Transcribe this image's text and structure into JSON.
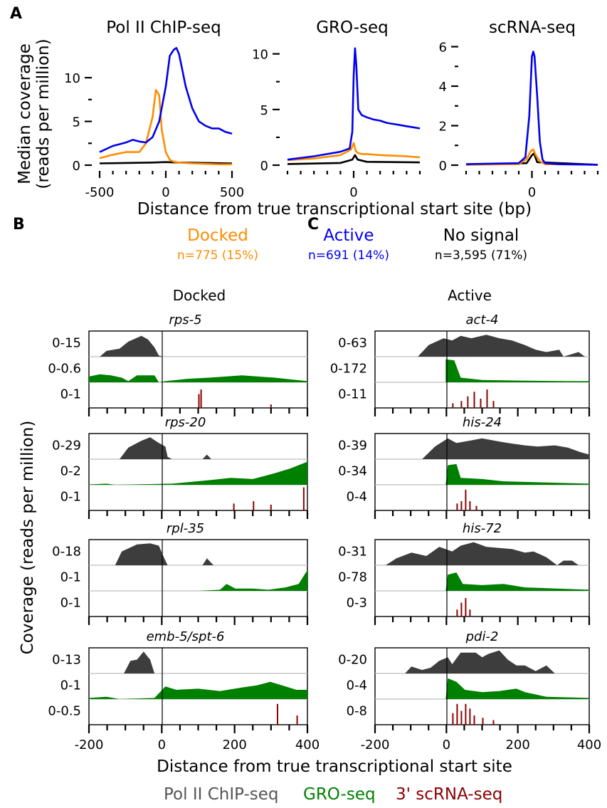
{
  "panel_labels": {
    "a": "A",
    "b": "B",
    "c": "C"
  },
  "colors": {
    "docked": "#ff8c00",
    "active": "#0000ee",
    "nosignal": "#000000",
    "pol2": "#3d3d3d",
    "gro": "#008000",
    "scrna": "#8b0000",
    "label_grey": "#555555"
  },
  "panel_a": {
    "ylabel_line1": "Median coverage",
    "ylabel_line2": "(reads per million)",
    "xlabel": "Distance from true transcriptional start site (bp)",
    "legend": {
      "docked_label": "Docked",
      "docked_n": "n=775 (15%)",
      "active_label": "Active",
      "active_n": "n=691 (14%)",
      "nosignal_label": "No signal",
      "nosignal_n": "n=3,595 (71%)"
    }
  },
  "panels_bc": {
    "ylabel": "Coverage (reads per million)",
    "xlabel": "Distance from true transcriptional start site",
    "docked_title": "Docked",
    "active_title": "Active",
    "xticks": [
      "-200",
      "0",
      "200",
      "400"
    ],
    "legend": {
      "pol2": "Pol II ChIP-seq",
      "gro": "GRO-seq",
      "scrna": "3' scRNA-seq"
    }
  },
  "chart_data": [
    {
      "type": "line",
      "title": "Pol II ChIP-seq",
      "xlim": [
        -500,
        500
      ],
      "ylim": [
        0,
        14
      ],
      "xticks": [
        "-500",
        "0",
        "500"
      ],
      "yticks": [
        "0",
        "5",
        "10"
      ],
      "series": [
        {
          "name": "Docked",
          "x": [
            -500,
            -400,
            -300,
            -200,
            -150,
            -100,
            -75,
            -50,
            -30,
            0,
            30,
            60,
            100,
            200,
            300,
            400,
            500
          ],
          "y": [
            0.8,
            1.2,
            1.5,
            1.5,
            2.5,
            5.5,
            8.6,
            8.0,
            4,
            1.5,
            0.6,
            0.4,
            0.3,
            0.2,
            0.15,
            0.1,
            0.1
          ]
        },
        {
          "name": "Active",
          "x": [
            -500,
            -400,
            -300,
            -250,
            -200,
            -150,
            -100,
            -50,
            0,
            30,
            60,
            80,
            100,
            130,
            150,
            200,
            250,
            300,
            350,
            400,
            450,
            500
          ],
          "y": [
            1.5,
            2.2,
            2.6,
            2.9,
            2.7,
            2.6,
            3.2,
            5,
            9,
            12.5,
            13.2,
            13.4,
            12.7,
            10.5,
            9,
            6.5,
            5,
            4.5,
            4.2,
            4.2,
            3.8,
            3.6
          ]
        },
        {
          "name": "No signal",
          "x": [
            -500,
            -300,
            -100,
            0,
            100,
            300,
            500
          ],
          "y": [
            0.2,
            0.25,
            0.3,
            0.35,
            0.3,
            0.25,
            0.2
          ]
        }
      ]
    },
    {
      "type": "line",
      "title": "GRO-seq",
      "xlim": [
        -500,
        500
      ],
      "ylim": [
        0,
        11
      ],
      "xticks": [
        "0"
      ],
      "yticks": [
        "0",
        "5",
        "10"
      ],
      "series": [
        {
          "name": "Docked",
          "x": [
            -500,
            -300,
            -100,
            -20,
            0,
            15,
            30,
            60,
            100,
            200,
            300,
            400,
            500
          ],
          "y": [
            0.45,
            0.6,
            0.9,
            1.4,
            2.0,
            1.3,
            1.1,
            1.0,
            1.0,
            0.9,
            0.85,
            0.8,
            0.7
          ]
        },
        {
          "name": "Active",
          "x": [
            -500,
            -300,
            -100,
            -30,
            -10,
            0,
            10,
            20,
            35,
            60,
            100,
            150,
            200,
            250,
            300,
            350,
            400,
            450,
            500
          ],
          "y": [
            0.5,
            0.8,
            1.2,
            1.5,
            3,
            8,
            10.5,
            9,
            5,
            4.5,
            4.3,
            4.1,
            4.0,
            3.8,
            3.7,
            3.6,
            3.5,
            3.4,
            3.3
          ]
        },
        {
          "name": "No signal",
          "x": [
            -500,
            -100,
            -10,
            10,
            30,
            100,
            500
          ],
          "y": [
            0.1,
            0.2,
            0.5,
            0.9,
            0.5,
            0.3,
            0.25
          ]
        }
      ]
    },
    {
      "type": "line",
      "title": "scRNA-seq",
      "xlim": [
        -500,
        500
      ],
      "ylim": [
        0,
        6.2
      ],
      "xticks": [
        "0"
      ],
      "yticks": [
        "0",
        "2",
        "4",
        "6"
      ],
      "series": [
        {
          "name": "Docked",
          "x": [
            -500,
            -100,
            -40,
            -10,
            10,
            30,
            60,
            100,
            500
          ],
          "y": [
            0.02,
            0.05,
            0.3,
            0.7,
            0.8,
            0.5,
            0.2,
            0.05,
            0.02
          ]
        },
        {
          "name": "Active",
          "x": [
            -500,
            -100,
            -50,
            -20,
            0,
            10,
            20,
            40,
            60,
            80,
            100,
            200,
            500
          ],
          "y": [
            0.05,
            0.1,
            0.4,
            2.5,
            5.5,
            5.75,
            5.5,
            3.5,
            1.2,
            0.3,
            0.1,
            0.05,
            0.02
          ]
        },
        {
          "name": "No signal",
          "x": [
            -500,
            -40,
            0,
            15,
            40,
            500
          ],
          "y": [
            0.02,
            0.1,
            0.5,
            0.6,
            0.15,
            0.02
          ]
        }
      ]
    }
  ],
  "tracks": {
    "docked": [
      {
        "gene": "rps-5",
        "labels": [
          "0-15",
          "0-0.6",
          "0-1"
        ]
      },
      {
        "gene": "rps-20",
        "labels": [
          "0-29",
          "0-2",
          "0-1"
        ]
      },
      {
        "gene": "rpl-35",
        "labels": [
          "0-18",
          "0-1",
          "0-1"
        ]
      },
      {
        "gene": "emb-5/spt-6",
        "labels": [
          "0-13",
          "0-1",
          "0-0.5"
        ]
      }
    ],
    "active": [
      {
        "gene": "act-4",
        "labels": [
          "0-63",
          "0-172",
          "0-11"
        ]
      },
      {
        "gene": "his-24",
        "labels": [
          "0-39",
          "0-34",
          "0-4"
        ]
      },
      {
        "gene": "his-72",
        "labels": [
          "0-31",
          "0-78",
          "0-3"
        ]
      },
      {
        "gene": "pdi-2",
        "labels": [
          "0-20",
          "0-4",
          "0-8"
        ]
      }
    ]
  }
}
